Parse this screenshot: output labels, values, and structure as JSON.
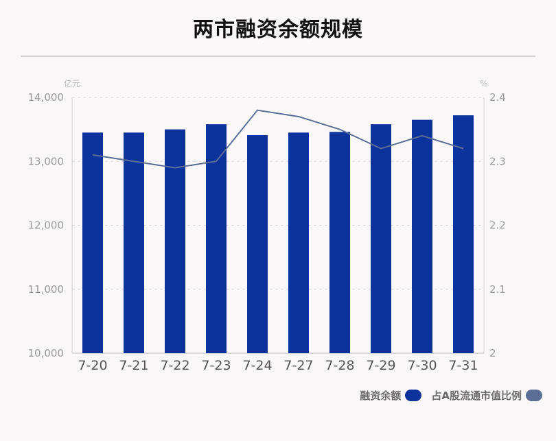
{
  "chart_data": {
    "type": "bar",
    "title": "两市融资余额规模",
    "categories": [
      "7-20",
      "7-21",
      "7-22",
      "7-23",
      "7-24",
      "7-27",
      "7-28",
      "7-29",
      "7-30",
      "7-31"
    ],
    "series": [
      {
        "name": "融资余额",
        "type": "bar",
        "axis": "left",
        "values": [
          13450,
          13450,
          13500,
          13580,
          13410,
          13450,
          13460,
          13580,
          13650,
          13720
        ]
      },
      {
        "name": "占A股流通市值比例",
        "type": "line",
        "axis": "right",
        "values": [
          2.31,
          2.3,
          2.29,
          2.3,
          2.38,
          2.37,
          2.35,
          2.32,
          2.34,
          2.32
        ]
      }
    ],
    "y_left": {
      "unit": "亿元",
      "ylim": [
        10000,
        14000
      ],
      "ticks": [
        10000,
        11000,
        12000,
        13000,
        14000
      ],
      "tick_labels": [
        "10,000",
        "11,000",
        "12,000",
        "13,000",
        "14,000"
      ]
    },
    "y_right": {
      "unit": "%",
      "ylim": [
        2.0,
        2.4
      ],
      "ticks": [
        2.0,
        2.1,
        2.2,
        2.3,
        2.4
      ],
      "tick_labels": [
        "2",
        "2.1",
        "2.2",
        "2.3",
        "2.4"
      ]
    },
    "grid": true,
    "legend_position": "bottom-right",
    "colors": {
      "bar": "#0c329c",
      "line": "#5b6f96"
    }
  }
}
